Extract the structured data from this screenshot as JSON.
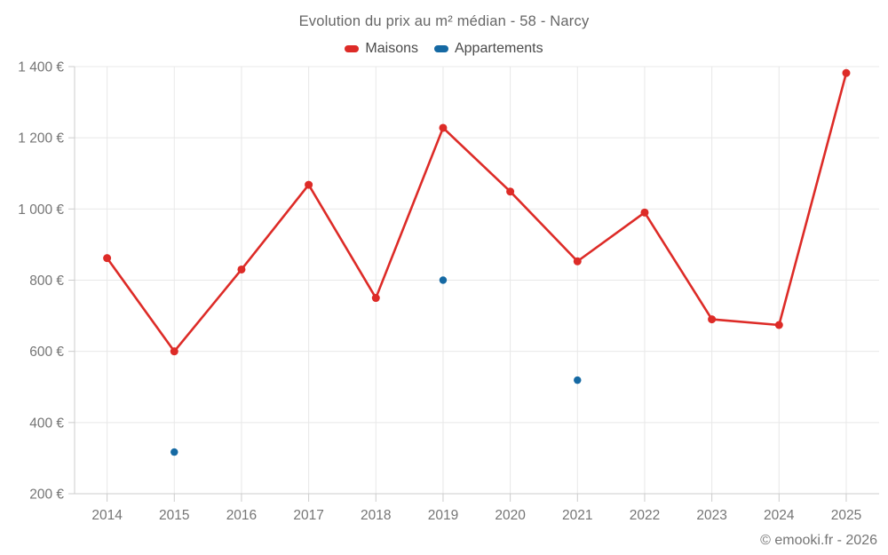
{
  "chart_data": {
    "type": "line",
    "title": "Evolution du prix au m² médian - 58 - Narcy",
    "categories": [
      "2014",
      "2015",
      "2016",
      "2017",
      "2018",
      "2019",
      "2020",
      "2021",
      "2022",
      "2023",
      "2024",
      "2025"
    ],
    "series": [
      {
        "name": "Maisons",
        "color": "#dd2b27",
        "show_line": true,
        "values": [
          862,
          600,
          830,
          1068,
          750,
          1228,
          1049,
          853,
          990,
          690,
          674,
          1382
        ]
      },
      {
        "name": "Appartements",
        "color": "#1569a3",
        "show_line": false,
        "values": [
          null,
          317,
          null,
          null,
          null,
          800,
          null,
          519,
          null,
          null,
          null,
          null
        ]
      }
    ],
    "xlabel": "",
    "ylabel": "",
    "ylim": [
      200,
      1400
    ],
    "ytick_step": 200,
    "ytick_labels": [
      "200 €",
      "400 €",
      "600 €",
      "800 €",
      "1 000 €",
      "1 200 €",
      "1 400 €"
    ],
    "grid": true,
    "legend_position": "top"
  },
  "colors": {
    "grid_line": "#e8e8e8",
    "axis_line": "#cccccc",
    "tick_label": "#757575",
    "title_text": "#666666",
    "legend_text": "#4a4a4a"
  },
  "footer": {
    "credit": "© emooki.fr - 2026"
  }
}
